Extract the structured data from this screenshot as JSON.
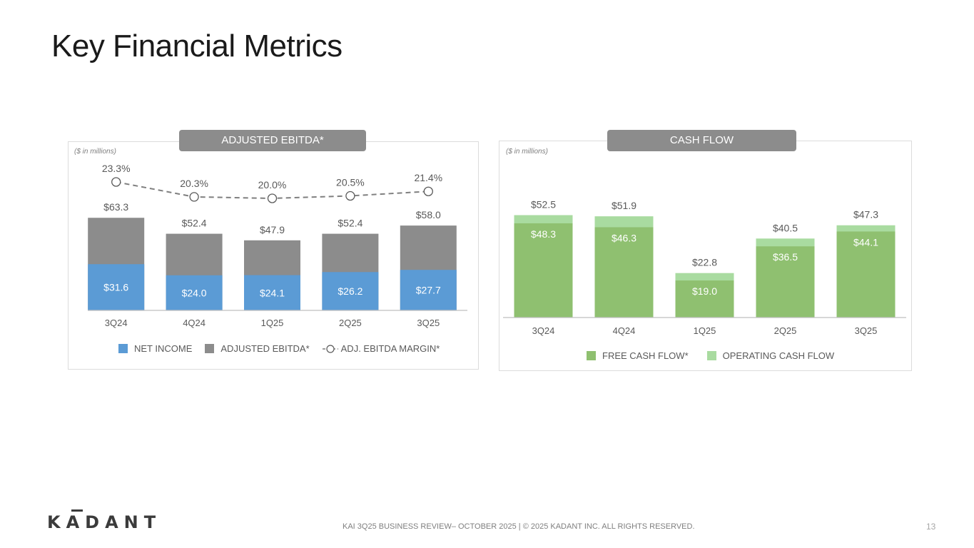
{
  "page": {
    "title": "Key Financial Metrics",
    "footer": "KAI 3Q25 BUSINESS REVIEW– OCTOBER 2025  |  © 2025 KADANT INC. ALL RIGHTS RESERVED.",
    "page_number": "13",
    "logo_text": "KADANT"
  },
  "panels": {
    "ebitda": {
      "tab": "ADJUSTED EBITDA*",
      "units": "($ in millions)"
    },
    "cash": {
      "tab": "CASH FLOW",
      "units": "($ in millions)"
    }
  },
  "colors": {
    "net_income": "#5b9bd5",
    "adjusted_ebitda": "#8c8c8c",
    "margin_line": "#7f7f7f",
    "free_cash_flow": "#8fc070",
    "operating_cash_flow": "#a9dba0"
  },
  "chart_data": [
    {
      "type": "bar",
      "stacked": "overlay",
      "title": "ADJUSTED EBITDA*",
      "categories": [
        "3Q24",
        "4Q24",
        "1Q25",
        "2Q25",
        "3Q25"
      ],
      "series": [
        {
          "name": "NET INCOME",
          "values": [
            31.6,
            24.0,
            24.1,
            26.2,
            27.7
          ],
          "labels": [
            "$31.6",
            "$24.0",
            "$24.1",
            "$26.2",
            "$27.7"
          ]
        },
        {
          "name": "ADJUSTED EBITDA*",
          "values": [
            63.3,
            52.4,
            47.9,
            52.4,
            58.0
          ],
          "labels": [
            "$63.3",
            "$52.4",
            "$47.9",
            "$52.4",
            "$58.0"
          ]
        },
        {
          "name": "ADJ. EBITDA MARGIN*",
          "type": "line",
          "values": [
            23.3,
            20.3,
            20.0,
            20.5,
            21.4
          ],
          "labels": [
            "23.3%",
            "20.3%",
            "20.0%",
            "20.5%",
            "21.4%"
          ]
        }
      ],
      "ylim": [
        0,
        100
      ],
      "margin_ylim": [
        0,
        30
      ],
      "legend": [
        "NET INCOME",
        "ADJUSTED EBITDA*",
        "ADJ. EBITDA MARGIN*"
      ],
      "legend_position": "bottom"
    },
    {
      "type": "bar",
      "stacked": "overlay",
      "title": "CASH FLOW",
      "categories": [
        "3Q24",
        "4Q24",
        "1Q25",
        "2Q25",
        "3Q25"
      ],
      "series": [
        {
          "name": "FREE CASH FLOW*",
          "values": [
            48.3,
            46.3,
            19.0,
            36.5,
            44.1
          ],
          "labels": [
            "$48.3",
            "$46.3",
            "$19.0",
            "$36.5",
            "$44.1"
          ]
        },
        {
          "name": "OPERATING CASH FLOW",
          "values": [
            52.5,
            51.9,
            22.8,
            40.5,
            47.3
          ],
          "labels": [
            "$52.5",
            "$51.9",
            "$22.8",
            "$40.5",
            "$47.3"
          ]
        }
      ],
      "ylim": [
        0,
        65
      ],
      "legend": [
        "FREE CASH FLOW*",
        "OPERATING CASH FLOW"
      ],
      "legend_position": "bottom"
    }
  ]
}
